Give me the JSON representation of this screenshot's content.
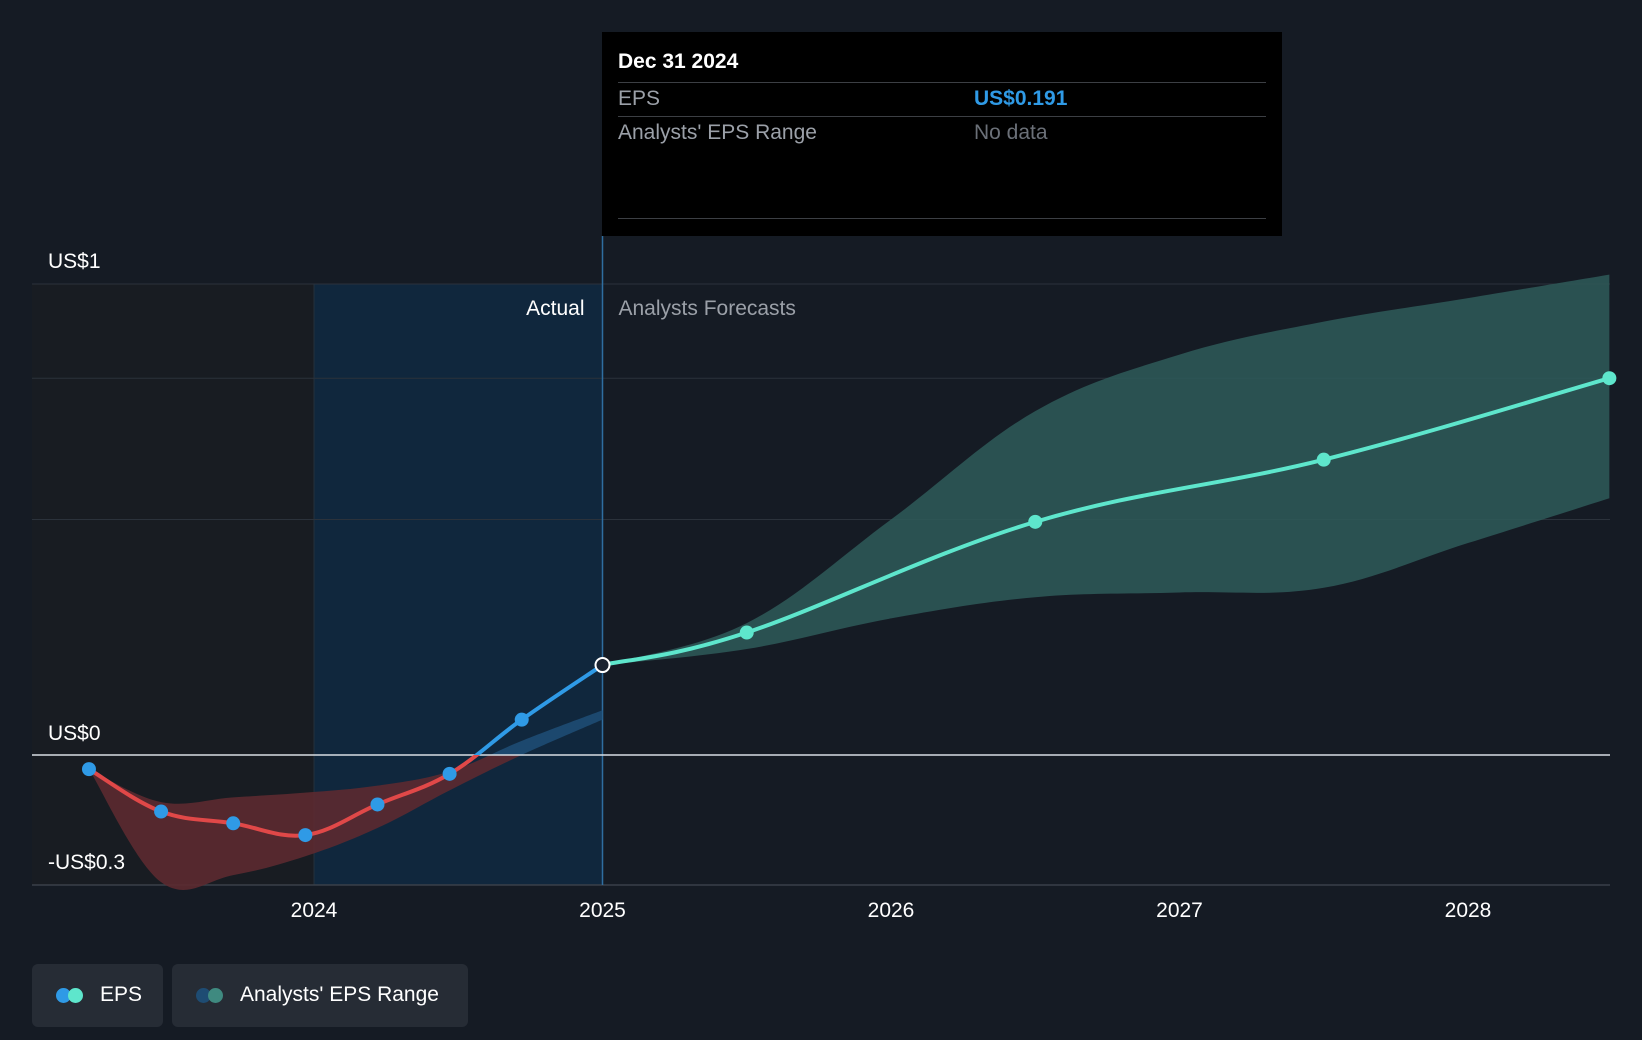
{
  "tooltip": {
    "date": "Dec 31 2024",
    "rows": [
      {
        "label": "EPS",
        "value": "US$0.191"
      },
      {
        "label": "Analysts' EPS Range",
        "value": "No data"
      }
    ]
  },
  "legend": {
    "eps_label": "EPS",
    "range_label": "Analysts' EPS Range"
  },
  "colors": {
    "background": "#151b24",
    "past_negative": "#e04848",
    "past_positive": "#2f9ae6",
    "forecast": "#5ee6cc",
    "forecast_band": "#2e5a59",
    "past_band_neg": "#5c2a30",
    "past_band_pos": "#1e4c73",
    "highlight": "#10273d"
  },
  "chart_data": {
    "type": "line",
    "y_tick_labels": [
      {
        "value": 1,
        "label": "US$1"
      },
      {
        "value": 0,
        "label": "US$0"
      },
      {
        "value": -0.3,
        "label": "-US$0.3"
      }
    ],
    "ylim": [
      -0.3,
      1.1
    ],
    "xlim": [
      2023.2,
      2028.49
    ],
    "x_tick_labels": [
      "2024",
      "2025",
      "2026",
      "2027",
      "2028"
    ],
    "x_tick_values": [
      2024,
      2025,
      2026,
      2027,
      2028
    ],
    "section_labels": {
      "actual": "Actual",
      "forecast": "Analysts Forecasts"
    },
    "divider_x": 2025.0,
    "highlight_start_x": 2024.0,
    "series": [
      {
        "name": "EPS",
        "kind": "actual",
        "points": [
          {
            "x": 2023.22,
            "y": -0.03
          },
          {
            "x": 2023.47,
            "y": -0.12
          },
          {
            "x": 2023.72,
            "y": -0.145
          },
          {
            "x": 2023.97,
            "y": -0.17
          },
          {
            "x": 2024.22,
            "y": -0.105
          },
          {
            "x": 2024.47,
            "y": -0.04
          },
          {
            "x": 2024.72,
            "y": 0.075
          },
          {
            "x": 2025.0,
            "y": 0.191
          }
        ]
      },
      {
        "name": "EPS",
        "kind": "forecast",
        "points": [
          {
            "x": 2025.0,
            "y": 0.191
          },
          {
            "x": 2025.5,
            "y": 0.26
          },
          {
            "x": 2026.5,
            "y": 0.495
          },
          {
            "x": 2027.5,
            "y": 0.627
          },
          {
            "x": 2028.49,
            "y": 0.8
          }
        ]
      }
    ],
    "ranges": [
      {
        "name": "Analysts' EPS Range",
        "kind": "forecast",
        "x": [
          2025.0,
          2025.5,
          2026.0,
          2026.5,
          2027.0,
          2027.5,
          2028.0,
          2028.49
        ],
        "low": [
          0.191,
          0.225,
          0.29,
          0.335,
          0.345,
          0.355,
          0.45,
          0.545
        ],
        "high": [
          0.191,
          0.28,
          0.5,
          0.73,
          0.85,
          0.92,
          0.97,
          1.02
        ]
      },
      {
        "name": "Analysts' EPS Range",
        "kind": "past",
        "x": [
          2023.22,
          2023.47,
          2023.72,
          2023.97,
          2024.22,
          2024.47,
          2024.72,
          2025.0
        ],
        "low": [
          -0.03,
          -0.27,
          -0.255,
          -0.215,
          -0.155,
          -0.075,
          0.0,
          0.075
        ],
        "high": [
          -0.03,
          -0.1,
          -0.09,
          -0.08,
          -0.065,
          -0.035,
          0.03,
          0.095
        ]
      }
    ]
  }
}
